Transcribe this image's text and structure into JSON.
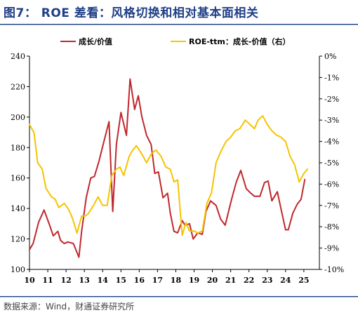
{
  "title": "图7： ROE 差看：风格切换和相对基本面相关",
  "source": "数据来源：Wind，财通证券研究所",
  "chart_data": {
    "type": "line",
    "x_tick_labels": [
      "10",
      "11",
      "12",
      "13",
      "14",
      "15",
      "16",
      "17",
      "18",
      "19",
      "20",
      "21",
      "22",
      "23",
      "24",
      "25"
    ],
    "xlim": [
      2010.0,
      2025.85
    ],
    "left_axis": {
      "ylim": [
        100,
        240
      ],
      "ticks": [
        100,
        120,
        140,
        160,
        180,
        200,
        220,
        240
      ]
    },
    "right_axis": {
      "ylim": [
        -10,
        0
      ],
      "ticks": [
        "-10%",
        "-9%",
        "-8%",
        "-7%",
        "-6%",
        "-5%",
        "-4%",
        "-3%",
        "-2%",
        "-1%",
        "0%"
      ]
    },
    "legend_placement": "top",
    "series": [
      {
        "name": "成长/价值",
        "axis": "left",
        "color": "#c0282d",
        "x": [
          2010.0,
          2010.2,
          2010.5,
          2010.8,
          2011.1,
          2011.3,
          2011.55,
          2011.7,
          2011.9,
          2012.1,
          2012.4,
          2012.7,
          2012.85,
          2013.1,
          2013.35,
          2013.55,
          2013.8,
          2014.05,
          2014.35,
          2014.55,
          2014.75,
          2015.0,
          2015.3,
          2015.5,
          2015.75,
          2015.95,
          2016.15,
          2016.4,
          2016.65,
          2016.85,
          2017.05,
          2017.3,
          2017.55,
          2017.7,
          2017.9,
          2018.1,
          2018.35,
          2018.5,
          2018.75,
          2018.95,
          2019.2,
          2019.45,
          2019.65,
          2019.9,
          2020.2,
          2020.45,
          2020.7,
          2021.05,
          2021.3,
          2021.55,
          2021.85,
          2022.1,
          2022.3,
          2022.6,
          2022.85,
          2023.05,
          2023.25,
          2023.55,
          2023.8,
          2024.0,
          2024.15,
          2024.4,
          2024.65,
          2024.85,
          2025.05,
          2025.25,
          2025.5,
          2025.7
        ],
        "y": [
          113,
          117,
          131,
          139,
          129,
          122,
          125,
          119,
          117,
          118,
          117,
          108,
          125,
          147,
          160,
          161,
          171,
          183,
          197,
          138,
          182,
          203,
          188,
          225,
          205,
          214,
          200,
          188,
          182,
          163,
          164,
          147,
          150,
          137,
          125,
          124,
          132,
          129,
          130,
          120,
          124,
          123,
          138,
          145,
          142,
          133,
          129,
          146,
          157,
          165,
          153,
          150,
          148,
          148,
          157,
          158,
          145,
          151,
          137,
          126,
          126,
          137,
          143,
          146,
          159,
          null,
          null,
          null
        ]
      },
      {
        "name": "ROE-ttm：成长-价值（右）",
        "axis": "right",
        "color": "#f5c400",
        "x": [
          2010.0,
          2010.25,
          2010.45,
          2010.7,
          2010.9,
          2011.2,
          2011.4,
          2011.6,
          2011.9,
          2012.15,
          2012.35,
          2012.6,
          2012.85,
          2013.05,
          2013.2,
          2013.5,
          2013.75,
          2014.0,
          2014.25,
          2014.5,
          2014.75,
          2014.95,
          2015.15,
          2015.45,
          2015.65,
          2015.85,
          2016.15,
          2016.4,
          2016.65,
          2016.9,
          2017.2,
          2017.45,
          2017.7,
          2017.9,
          2018.1,
          2018.35,
          2018.55,
          2018.75,
          2019.0,
          2019.2,
          2019.45,
          2019.7,
          2019.95,
          2020.2,
          2020.5,
          2020.75,
          2021.0,
          2021.25,
          2021.5,
          2021.8,
          2022.05,
          2022.3,
          2022.5,
          2022.75,
          2023.0,
          2023.25,
          2023.5,
          2023.75,
          2024.0,
          2024.25,
          2024.5,
          2024.75,
          2025.0,
          2025.2,
          2025.5
        ],
        "y": [
          -3.2,
          -3.6,
          -5.0,
          -5.3,
          -6.2,
          -6.6,
          -6.7,
          -7.1,
          -6.9,
          -7.2,
          -7.6,
          -8.3,
          -7.5,
          -7.5,
          -7.4,
          -7.0,
          -6.6,
          -7.0,
          -7.0,
          -5.6,
          -5.3,
          -5.2,
          -5.6,
          -4.7,
          -4.4,
          -4.2,
          -4.6,
          -5.0,
          -4.6,
          -4.4,
          -4.7,
          -5.2,
          -5.3,
          -5.9,
          -5.8,
          -8.4,
          -7.8,
          -8.2,
          -8.2,
          -8.3,
          -8.2,
          -6.9,
          -6.4,
          -5.0,
          -4.4,
          -4.0,
          -3.8,
          -3.5,
          -3.4,
          -3.0,
          -3.2,
          -3.4,
          -3.0,
          -2.8,
          -3.2,
          -3.5,
          -3.7,
          -3.8,
          -4.0,
          -4.7,
          -5.1,
          -5.9,
          -5.5,
          -5.3,
          null
        ]
      }
    ]
  }
}
